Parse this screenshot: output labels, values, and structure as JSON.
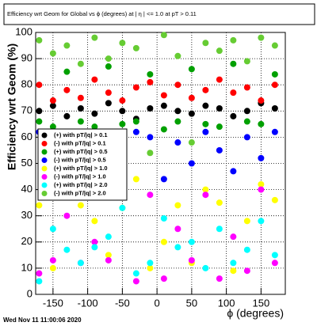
{
  "chart_data": {
    "type": "scatter",
    "title": "Efficiency wrt Geom for Global vs ϕ (degrees) at | η | <= 1.0 at pT > 0.11",
    "x_label": "ϕ (degrees)",
    "y_label": "Efficiency wrt Geom (%)",
    "footer": "Wed Nov 11 11:00:06 2020",
    "x": [
      -170,
      -150,
      -130,
      -110,
      -90,
      -70,
      -50,
      -30,
      -10,
      10,
      30,
      50,
      70,
      90,
      110,
      130,
      150,
      170
    ],
    "series": [
      {
        "name": "(+) with pT/|q| > 0.1",
        "color": "#000000",
        "values": [
          70,
          72,
          68,
          71,
          69,
          73,
          70,
          67,
          71,
          72,
          70,
          69,
          72,
          71,
          68,
          70,
          73,
          71
        ]
      },
      {
        "name": "(-) with pT/|q| > 0.1",
        "color": "#ff0000",
        "values": [
          80,
          74,
          78,
          75,
          82,
          77,
          74,
          79,
          81,
          76,
          80,
          75,
          78,
          82,
          77,
          79,
          74,
          80
        ]
      },
      {
        "name": "(+) with pT/|q| > 0.5",
        "color": "#00a000",
        "values": [
          66,
          64,
          85,
          66,
          64,
          87,
          65,
          66,
          84,
          63,
          66,
          86,
          65,
          64,
          88,
          66,
          65,
          84
        ]
      },
      {
        "name": "(-) with pT/|q| > 0.5",
        "color": "#0000ff",
        "values": [
          62,
          58,
          55,
          62,
          48,
          52,
          45,
          62,
          60,
          44,
          58,
          50,
          62,
          55,
          47,
          60,
          52,
          62
        ]
      },
      {
        "name": "(+) with pT/|q| > 1.0",
        "color": "#ffff00",
        "values": [
          34,
          10,
          42,
          34,
          28,
          15,
          33,
          44,
          10,
          20,
          34,
          12,
          40,
          35,
          9,
          28,
          42,
          36
        ]
      },
      {
        "name": "(-) with pT/|q| > 1.0",
        "color": "#ff00ff",
        "values": [
          8,
          13,
          30,
          12,
          20,
          13,
          39,
          5,
          38,
          6,
          25,
          13,
          38,
          6,
          22,
          9,
          40,
          12
        ]
      },
      {
        "name": "(+) with pT/|q| > 2.0",
        "color": "#00ffff",
        "values": [
          5,
          25,
          17,
          12,
          18,
          22,
          33,
          8,
          12,
          29,
          18,
          20,
          10,
          25,
          12,
          17,
          28,
          15
        ]
      },
      {
        "name": "(-) with pT/|q| > 2.0",
        "color": "#66cc33",
        "values": [
          97,
          92,
          95,
          88,
          98,
          90,
          96,
          94,
          54,
          99,
          91,
          58,
          96,
          93,
          97,
          89,
          98,
          95
        ]
      }
    ],
    "xlim": [
      -175,
      185
    ],
    "ylim": [
      0,
      100
    ],
    "xticks": [
      -150,
      -100,
      -50,
      0,
      50,
      100,
      150
    ],
    "yticks": [
      0,
      10,
      20,
      30,
      40,
      50,
      60,
      70,
      80,
      90,
      100
    ],
    "grid": true
  }
}
